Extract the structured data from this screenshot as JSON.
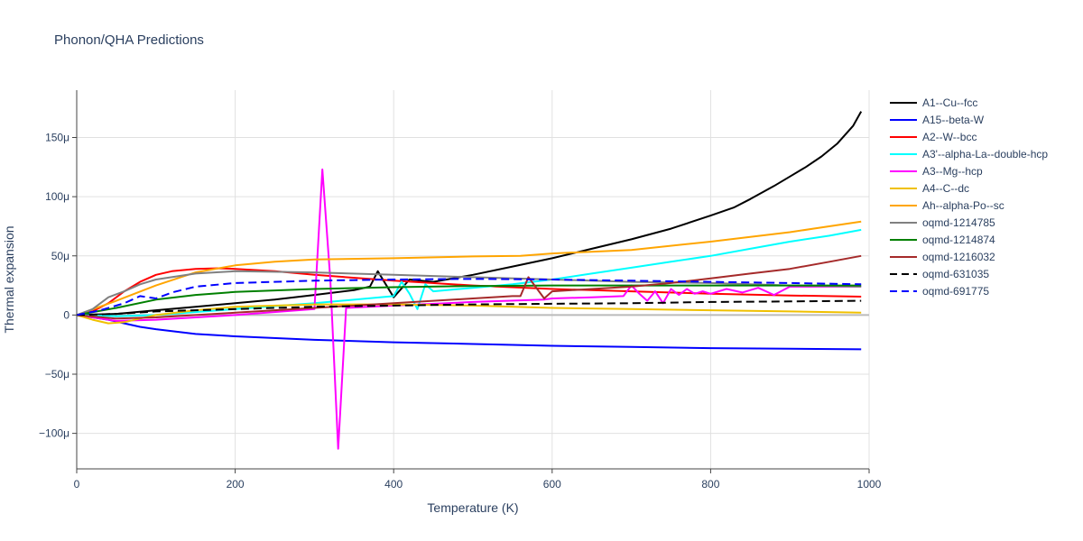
{
  "chart_data": {
    "type": "line",
    "title": "Phonon/QHA Predictions",
    "xlabel": "Temperature (K)",
    "ylabel": "Thermal expansion",
    "xlim": [
      0,
      1000
    ],
    "ylim": [
      -130,
      190
    ],
    "x_ticks": [
      0,
      200,
      400,
      600,
      800,
      1000
    ],
    "x_tick_labels": [
      "0",
      "200",
      "400",
      "600",
      "800",
      "1000"
    ],
    "y_ticks": [
      -100,
      -50,
      0,
      50,
      100,
      150
    ],
    "y_tick_labels": [
      "−100μ",
      "−50μ",
      "0",
      "50μ",
      "100μ",
      "150μ"
    ],
    "grid": true,
    "legend_position": "right",
    "series": [
      {
        "name": "A1--Cu--fcc",
        "color": "#000000",
        "dash": "solid",
        "x": [
          0,
          50,
          100,
          150,
          200,
          250,
          300,
          350,
          370,
          380,
          400,
          420,
          450,
          500,
          550,
          600,
          650,
          700,
          750,
          800,
          830,
          850,
          880,
          900,
          920,
          940,
          960,
          980,
          990
        ],
        "y": [
          0,
          1,
          4,
          7,
          10,
          13,
          17,
          21,
          24,
          37,
          15,
          30,
          28,
          34,
          41,
          48,
          56,
          64,
          73,
          84,
          91,
          98,
          109,
          117,
          125,
          134,
          145,
          160,
          172
        ]
      },
      {
        "name": "A15--beta-W",
        "color": "#0000ff",
        "dash": "solid",
        "x": [
          0,
          20,
          40,
          60,
          80,
          100,
          150,
          200,
          300,
          400,
          500,
          600,
          700,
          800,
          900,
          990
        ],
        "y": [
          0,
          -2,
          -4,
          -7,
          -10,
          -12,
          -16,
          -18,
          -21,
          -23,
          -24.5,
          -26,
          -27,
          -28,
          -28.5,
          -29
        ]
      },
      {
        "name": "A2--W--bcc",
        "color": "#ff0000",
        "dash": "solid",
        "x": [
          0,
          20,
          40,
          60,
          80,
          100,
          120,
          150,
          180,
          200,
          250,
          300,
          400,
          500,
          600,
          700,
          800,
          900,
          990
        ],
        "y": [
          0,
          3,
          10,
          20,
          28,
          34,
          37,
          39,
          39.5,
          39,
          37,
          34,
          29,
          25,
          22,
          20,
          18,
          16.5,
          15.5
        ]
      },
      {
        "name": "A3'--alpha-La--double-hcp",
        "color": "#00ffff",
        "dash": "solid",
        "x": [
          0,
          50,
          100,
          200,
          300,
          400,
          410,
          420,
          430,
          440,
          450,
          500,
          550,
          600,
          650,
          700,
          750,
          800,
          850,
          900,
          950,
          990
        ],
        "y": [
          0,
          -1,
          0,
          5,
          10,
          16,
          28,
          18,
          5,
          26,
          20,
          23,
          26,
          30,
          35,
          40,
          45,
          50,
          56,
          62,
          67,
          72
        ]
      },
      {
        "name": "A3--Mg--hcp",
        "color": "#ff00ff",
        "dash": "solid",
        "x": [
          0,
          50,
          100,
          200,
          300,
          310,
          320,
          330,
          340,
          400,
          500,
          590,
          600,
          650,
          690,
          700,
          710,
          720,
          730,
          740,
          750,
          760,
          770,
          780,
          790,
          800,
          820,
          840,
          860,
          880,
          900,
          950,
          990
        ],
        "y": [
          0,
          -5,
          -4,
          0,
          5,
          123,
          30,
          -113,
          6,
          8,
          11,
          13,
          14,
          15,
          16,
          25,
          18,
          12,
          20,
          10,
          22,
          17,
          22,
          18,
          20,
          18,
          22,
          19,
          23,
          17,
          24,
          24,
          24
        ]
      },
      {
        "name": "A4--C--dc",
        "color": "#f0c000",
        "dash": "solid",
        "x": [
          0,
          20,
          40,
          60,
          80,
          100,
          150,
          200,
          300,
          400,
          500,
          600,
          700,
          800,
          900,
          990
        ],
        "y": [
          0,
          -4,
          -7,
          -6,
          -3,
          0,
          4,
          7,
          9,
          9,
          8,
          6,
          5,
          4,
          3,
          2
        ]
      },
      {
        "name": "Ah--alpha-Po--sc",
        "color": "#ffa500",
        "dash": "solid",
        "x": [
          0,
          50,
          100,
          150,
          200,
          250,
          300,
          400,
          500,
          560,
          600,
          700,
          800,
          900,
          990
        ],
        "y": [
          0,
          12,
          25,
          36,
          42,
          45,
          47,
          48,
          49.5,
          50,
          52,
          55,
          62,
          70,
          79
        ]
      },
      {
        "name": "oqmd-1214785",
        "color": "#808080",
        "dash": "solid",
        "x": [
          0,
          20,
          40,
          60,
          80,
          100,
          150,
          200,
          300,
          400,
          500,
          600,
          700,
          800,
          900,
          990
        ],
        "y": [
          0,
          5,
          15,
          20,
          26,
          30,
          35,
          37,
          36,
          34,
          32,
          30,
          28,
          27,
          25,
          24
        ]
      },
      {
        "name": "oqmd-1214874",
        "color": "#008000",
        "dash": "solid",
        "x": [
          0,
          50,
          100,
          150,
          200,
          300,
          400,
          500,
          600,
          700,
          800,
          900,
          990
        ],
        "y": [
          0,
          6,
          13,
          17,
          19.5,
          22,
          23.5,
          24.5,
          25,
          25,
          25,
          25,
          25
        ]
      },
      {
        "name": "oqmd-1216032",
        "color": "#a52a2a",
        "dash": "solid",
        "x": [
          0,
          50,
          100,
          200,
          300,
          400,
          500,
          550,
          560,
          570,
          590,
          600,
          650,
          700,
          750,
          800,
          850,
          900,
          950,
          990
        ],
        "y": [
          0,
          -3,
          -2,
          2,
          6,
          10,
          14,
          16,
          16,
          32,
          14,
          20,
          22,
          24,
          27,
          31,
          35,
          39,
          45,
          50
        ]
      },
      {
        "name": "oqmd-631035",
        "color": "#000000",
        "dash": "dash",
        "x": [
          0,
          50,
          100,
          200,
          300,
          400,
          500,
          600,
          700,
          800,
          900,
          990
        ],
        "y": [
          0,
          1,
          3,
          5,
          7,
          8,
          9,
          9.5,
          10,
          11,
          11.5,
          12
        ]
      },
      {
        "name": "oqmd-691775",
        "color": "#0000ff",
        "dash": "dash",
        "x": [
          0,
          30,
          60,
          80,
          100,
          120,
          150,
          200,
          300,
          400,
          500,
          600,
          700,
          800,
          900,
          990
        ],
        "y": [
          0,
          4,
          10,
          16,
          14,
          19,
          24,
          27,
          29,
          30,
          30.5,
          30,
          29,
          28,
          27,
          26
        ]
      }
    ]
  }
}
